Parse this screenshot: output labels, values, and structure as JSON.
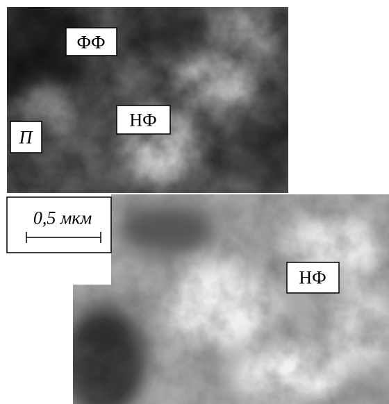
{
  "top_image": {
    "labels": [
      "ФФ",
      "НФ",
      "П"
    ]
  },
  "bottom_image": {
    "labels": [
      "НФ"
    ]
  },
  "scale_bar": {
    "label": "0,5 мкм"
  }
}
